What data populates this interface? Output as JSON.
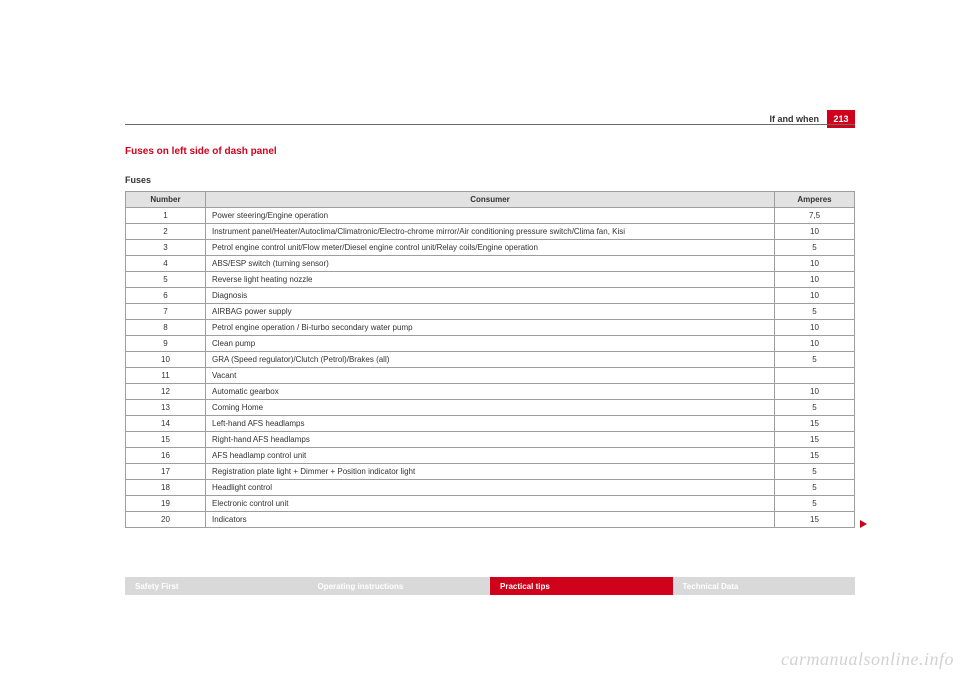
{
  "header": {
    "section_label": "If and when",
    "page_number": "213"
  },
  "title": "Fuses on left side of dash panel",
  "subtitle": "Fuses",
  "table": {
    "columns": [
      "Number",
      "Consumer",
      "Amperes"
    ],
    "rows": [
      [
        "1",
        "Power steering/Engine operation",
        "7,5"
      ],
      [
        "2",
        "Instrument panel/Heater/Autoclima/Climatronic/Electro-chrome mirror/Air conditioning pressure switch/Clima fan, Kisi",
        "10"
      ],
      [
        "3",
        "Petrol engine control unit/Flow meter/Diesel engine control unit/Relay coils/Engine operation",
        "5"
      ],
      [
        "4",
        "ABS/ESP switch (turning sensor)",
        "10"
      ],
      [
        "5",
        "Reverse light heating nozzle",
        "10"
      ],
      [
        "6",
        "Diagnosis",
        "10"
      ],
      [
        "7",
        "AIRBAG power supply",
        "5"
      ],
      [
        "8",
        "Petrol engine operation / Bi-turbo secondary water pump",
        "10"
      ],
      [
        "9",
        "Clean pump",
        "10"
      ],
      [
        "10",
        "GRA (Speed regulator)/Clutch (Petrol)/Brakes (all)",
        "5"
      ],
      [
        "11",
        "Vacant",
        ""
      ],
      [
        "12",
        "Automatic gearbox",
        "10"
      ],
      [
        "13",
        "Coming Home",
        "5"
      ],
      [
        "14",
        "Left-hand AFS headlamps",
        "15"
      ],
      [
        "15",
        "Right-hand AFS headlamps",
        "15"
      ],
      [
        "16",
        "AFS headlamp control unit",
        "15"
      ],
      [
        "17",
        "Registration plate light + Dimmer + Position indicator light",
        "5"
      ],
      [
        "18",
        "Headlight control",
        "5"
      ],
      [
        "19",
        "Electronic control unit",
        "5"
      ],
      [
        "20",
        "Indicators",
        "15"
      ]
    ]
  },
  "footer_tabs": [
    {
      "label": "Safety First",
      "active": false
    },
    {
      "label": "Operating instructions",
      "active": false
    },
    {
      "label": "Practical tips",
      "active": true
    },
    {
      "label": "Technical Data",
      "active": false
    }
  ],
  "watermark": "carmanualsonline.info",
  "colors": {
    "accent": "#d0021b",
    "grey_tab": "#d9d9d9",
    "th_bg": "#e2e2e2",
    "border": "#9e9e9e",
    "rule": "#6b6b6b",
    "text": "#333333"
  }
}
